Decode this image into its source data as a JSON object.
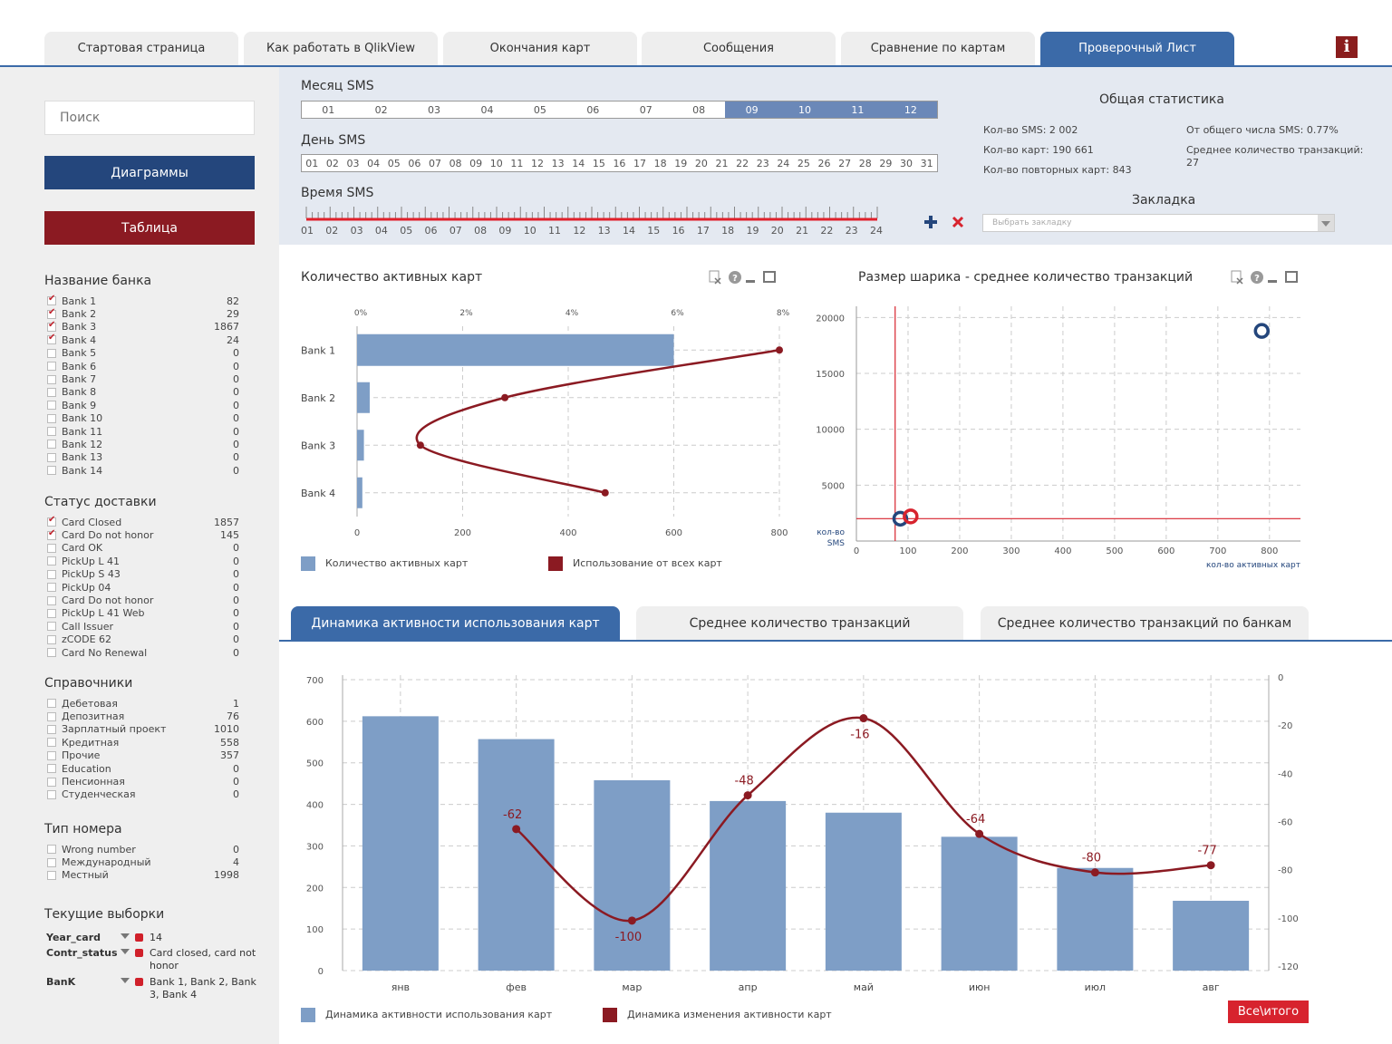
{
  "top_tabs": [
    "Стартовая страница",
    "Как работать в QlikView",
    "Окончания карт",
    "Сообщения",
    "Сравнение по картам",
    "Проверочный Лист"
  ],
  "info_label": "i",
  "sidebar": {
    "search_placeholder": "Поиск",
    "btn_diagrams": "Диаграммы",
    "btn_table": "Таблица",
    "bank_title": "Название банка",
    "banks": [
      {
        "label": "Bank 1",
        "count": "82",
        "checked": true
      },
      {
        "label": "Bank 2",
        "count": "29",
        "checked": true
      },
      {
        "label": "Bank 3",
        "count": "1867",
        "checked": true
      },
      {
        "label": "Bank 4",
        "count": "24",
        "checked": true
      },
      {
        "label": "Bank 5",
        "count": "0",
        "checked": false
      },
      {
        "label": "Bank 6",
        "count": "0",
        "checked": false
      },
      {
        "label": "Bank 7",
        "count": "0",
        "checked": false
      },
      {
        "label": "Bank 8",
        "count": "0",
        "checked": false
      },
      {
        "label": "Bank 9",
        "count": "0",
        "checked": false
      },
      {
        "label": "Bank 10",
        "count": "0",
        "checked": false
      },
      {
        "label": "Bank 11",
        "count": "0",
        "checked": false
      },
      {
        "label": "Bank 12",
        "count": "0",
        "checked": false
      },
      {
        "label": "Bank 13",
        "count": "0",
        "checked": false
      },
      {
        "label": "Bank 14",
        "count": "0",
        "checked": false
      }
    ],
    "status_title": "Статус доставки",
    "statuses": [
      {
        "label": "Card Closed",
        "count": "1857",
        "checked": true
      },
      {
        "label": "Card Do not honor",
        "count": "145",
        "checked": true
      },
      {
        "label": "Card OK",
        "count": "0",
        "checked": false
      },
      {
        "label": "PickUp L 41",
        "count": "0",
        "checked": false
      },
      {
        "label": "PickUp S 43",
        "count": "0",
        "checked": false
      },
      {
        "label": "PickUp 04",
        "count": "0",
        "checked": false
      },
      {
        "label": "Card Do not honor",
        "count": "0",
        "checked": false
      },
      {
        "label": "PickUp L 41 Web",
        "count": "0",
        "checked": false
      },
      {
        "label": "Call Issuer",
        "count": "0",
        "checked": false
      },
      {
        "label": "zCODE 62",
        "count": "0",
        "checked": false
      },
      {
        "label": "Card No Renewal",
        "count": "0",
        "checked": false
      }
    ],
    "ref_title": "Справочники",
    "refs": [
      {
        "label": "Дебетовая",
        "count": "1",
        "checked": false
      },
      {
        "label": "Депозитная",
        "count": "76",
        "checked": false
      },
      {
        "label": "Зарплатный проект",
        "count": "1010",
        "checked": false
      },
      {
        "label": "Кредитная",
        "count": "558",
        "checked": false
      },
      {
        "label": "Прочие",
        "count": "357",
        "checked": false
      },
      {
        "label": "Education",
        "count": "0",
        "checked": false
      },
      {
        "label": "Пенсионная",
        "count": "0",
        "checked": false
      },
      {
        "label": "Студенческая",
        "count": "0",
        "checked": false
      }
    ],
    "phone_title": "Тип номера",
    "phones": [
      {
        "label": "Wrong number",
        "count": "0",
        "checked": false
      },
      {
        "label": "Международный",
        "count": "4",
        "checked": false
      },
      {
        "label": "Местный",
        "count": "1998",
        "checked": false
      }
    ],
    "current_title": "Текущие выборки",
    "current": [
      {
        "key": "Year_card",
        "value": "14"
      },
      {
        "key": "Contr_status",
        "value": "Card closed, card not honor"
      },
      {
        "key": "BanK",
        "value": "Bank 1, Bank 2, Bank 3, Bank 4"
      }
    ]
  },
  "filters": {
    "month_label": "Месяц SMS",
    "months": [
      "01",
      "02",
      "03",
      "04",
      "05",
      "06",
      "07",
      "08",
      "09",
      "10",
      "11",
      "12"
    ],
    "months_selected": [
      "09",
      "10",
      "11",
      "12"
    ],
    "day_label": "День SMS",
    "days": [
      "01",
      "02",
      "03",
      "04",
      "05",
      "06",
      "07",
      "08",
      "09",
      "10",
      "11",
      "12",
      "13",
      "14",
      "15",
      "16",
      "17",
      "18",
      "19",
      "20",
      "21",
      "22",
      "23",
      "24",
      "25",
      "26",
      "27",
      "28",
      "29",
      "30",
      "31"
    ],
    "time_label": "Время SMS",
    "hours": [
      "01",
      "02",
      "03",
      "04",
      "05",
      "06",
      "07",
      "08",
      "09",
      "10",
      "11",
      "12",
      "13",
      "14",
      "15",
      "16",
      "17",
      "18",
      "19",
      "20",
      "21",
      "22",
      "23",
      "24"
    ],
    "stats_title": "Общая статистика",
    "stats": {
      "sms_count": "Кол-во SMS: 2 002",
      "card_count": "Кол-во карт: 190 661",
      "repeat_count": "Кол-во повторных карт: 843",
      "share": "От общего числа SMS: 0.77%",
      "avg_tx": "Среднее количество транзакций: 27"
    },
    "bookmark_title": "Закладка",
    "bookmark_placeholder": "Выбрать закладку"
  },
  "chart1": {
    "title": "Количество активных карт",
    "legend_bar": "Количество активных карт",
    "legend_line": "Использование от всех карт"
  },
  "chart2": {
    "title": "Размер шарика - среднее количество транзакций",
    "x_axis_label": "кол-во активных карт",
    "y_axis_label_1": "кол-во",
    "y_axis_label_2": "SMS"
  },
  "bottom_tabs": [
    "Динамика активности использования карт",
    "Среднее количество транзакций",
    "Среднее количество транзакций по банкам"
  ],
  "chart3": {
    "legend_bar": "Динамика активности использования карт",
    "legend_line": "Динамика изменения активности карт"
  },
  "total_btn": "Все\\итого",
  "colors": {
    "bar": "#7e9ec6",
    "line": "#8b1a22",
    "accent_blue": "#3b6aa8",
    "accent_red": "#d7232e"
  },
  "chart_data": [
    {
      "type": "bar",
      "orientation": "horizontal",
      "categories": [
        "Bank 1",
        "Bank 2",
        "Bank 3",
        "Bank 4"
      ],
      "series": [
        {
          "name": "Количество активных карт",
          "values": [
            600,
            24,
            13,
            10
          ]
        },
        {
          "name": "Использование от всех карт",
          "type": "line",
          "values": [
            8.0,
            2.8,
            1.2,
            4.7
          ]
        }
      ],
      "x_ticks": [
        "0",
        "200",
        "400",
        "600",
        "800"
      ],
      "x2_ticks": [
        "0%",
        "2%",
        "4%",
        "6%",
        "8%"
      ],
      "xlim": [
        0,
        800
      ],
      "x2lim": [
        0,
        8
      ]
    },
    {
      "type": "scatter",
      "points": [
        {
          "x": 85,
          "y": 2000,
          "color": "#24467c"
        },
        {
          "x": 105,
          "y": 2200,
          "color": "#d7232e"
        },
        {
          "x": 785,
          "y": 18800,
          "color": "#24467c"
        }
      ],
      "ref_x": 75,
      "ref_y": 2002,
      "x_ticks": [
        "0",
        "100",
        "200",
        "300",
        "400",
        "500",
        "600",
        "700",
        "800"
      ],
      "y_ticks": [
        "5000",
        "10000",
        "15000",
        "20000"
      ],
      "xlim": [
        0,
        860
      ],
      "ylim": [
        0,
        21000
      ]
    },
    {
      "type": "bar",
      "categories": [
        "янв",
        "фев",
        "мар",
        "апр",
        "май",
        "июн",
        "июл",
        "авг"
      ],
      "series": [
        {
          "name": "Динамика активности использования карт",
          "values": [
            612,
            557,
            458,
            408,
            380,
            322,
            247,
            168
          ]
        },
        {
          "name": "Динамика изменения активности карт",
          "type": "line",
          "axis": "right",
          "values": [
            null,
            -62,
            -100,
            -48,
            -16,
            -64,
            -80,
            -77
          ]
        }
      ],
      "y_ticks": [
        "0",
        "100",
        "200",
        "300",
        "400",
        "500",
        "600",
        "700"
      ],
      "y2_ticks": [
        "0",
        "-20",
        "-40",
        "-60",
        "-80",
        "-100",
        "-120"
      ],
      "ylim": [
        0,
        700
      ],
      "y2lim": [
        -120,
        0
      ]
    }
  ]
}
